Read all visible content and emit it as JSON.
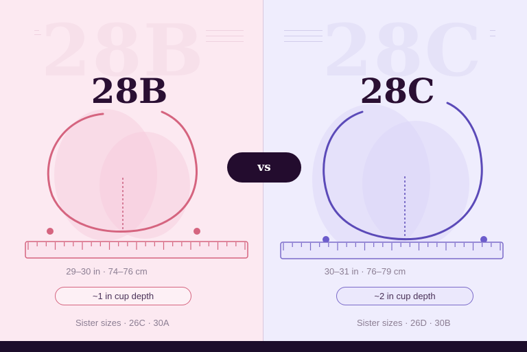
{
  "left": {
    "ghost_text": "28B",
    "title": "28B",
    "measurement": "29–30 in · 74–76 cm",
    "cup_depth": "~1 in cup depth",
    "sister_sizes": "Sister sizes · 26C · 30A",
    "accent": "#d5647f",
    "background": "#fce9f1"
  },
  "right": {
    "ghost_text": "28C",
    "title": "28C",
    "measurement": "30–31 in · 76–79 cm",
    "cup_depth": "~2 in cup depth",
    "sister_sizes": "Sister sizes · 26D · 30B",
    "accent": "#5b4ab8",
    "background": "#efedfd"
  },
  "vs_label": "vs",
  "footer_color": "#1c0d2b"
}
